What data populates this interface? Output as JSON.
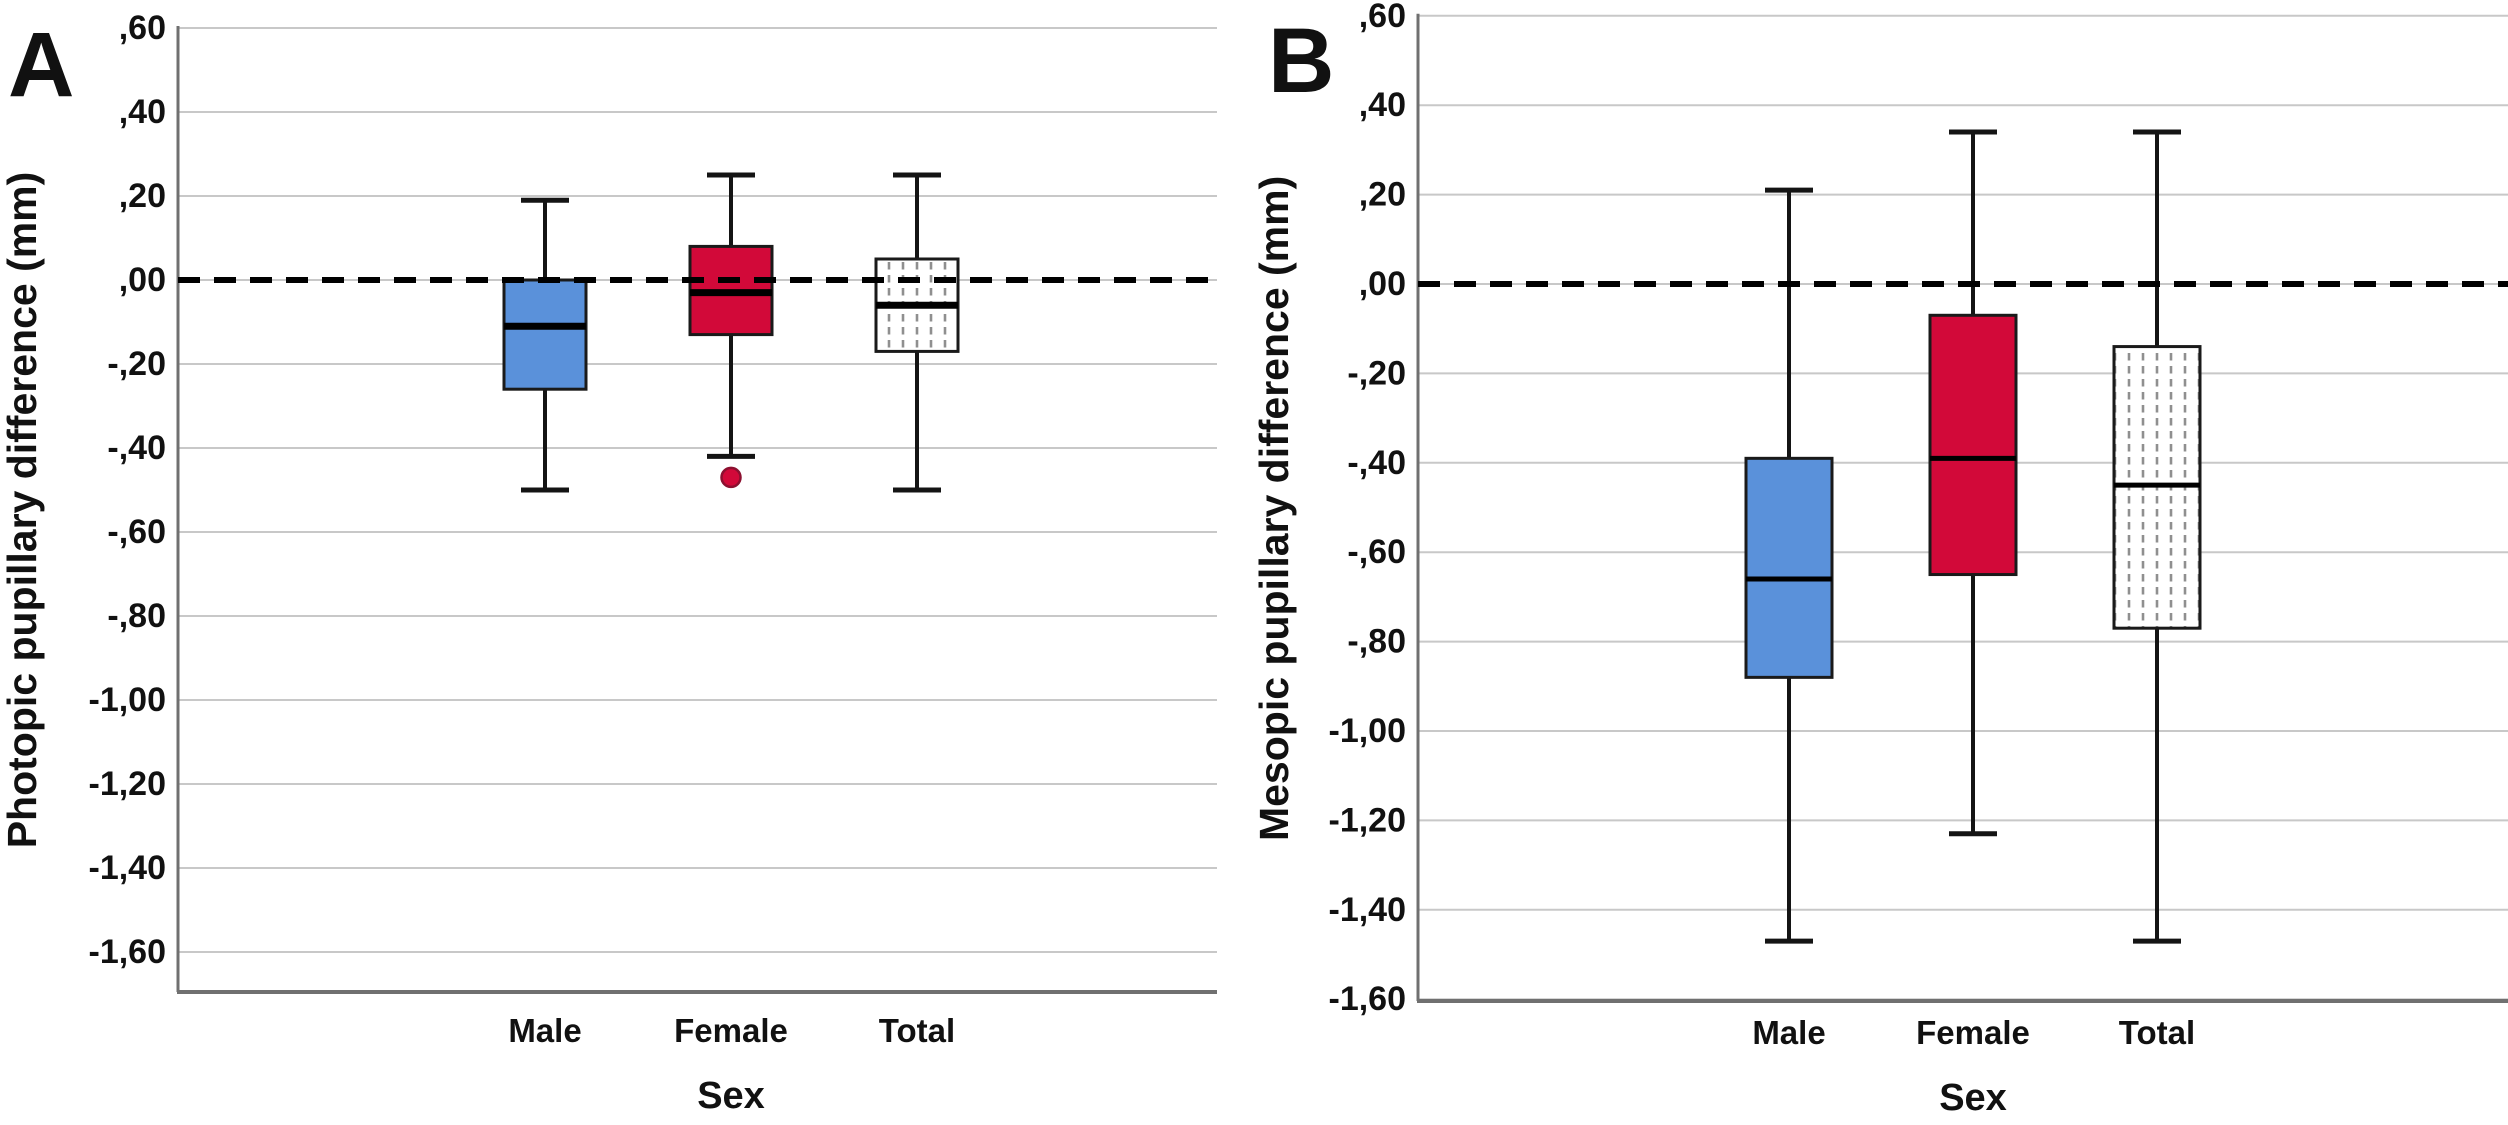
{
  "figure": {
    "background": "#ffffff",
    "colors": {
      "male_box": "#5A91DA",
      "female_box": "#D20939",
      "total_box_bg": "#ffffff",
      "total_pattern": "#8f8f8f",
      "box_stroke": "#1a1a1a",
      "median": "#000000",
      "whisker": "#141414",
      "grid": "#c8c8c8",
      "axis": "#707070",
      "zero_line": "#000000",
      "outlier_fill": "#D20939",
      "outlier_stroke": "#8c1030",
      "text": "#111111"
    }
  },
  "chart_data": [
    {
      "type": "box",
      "panel_label": "A",
      "ylabel": "Photopic pupillary difference (mm)",
      "xlabel": "Sex",
      "categories": [
        "Male",
        "Female",
        "Total"
      ],
      "y_ticks": [
        ",60",
        ",40",
        ",20",
        ",00",
        "-,20",
        "-,40",
        "-,60",
        "-,80",
        "-1,00",
        "-1,20",
        "-1,40",
        "-1,60"
      ],
      "y_tick_values": [
        0.6,
        0.4,
        0.2,
        0.0,
        -0.2,
        -0.4,
        -0.6,
        -0.8,
        -1.0,
        -1.2,
        -1.4,
        -1.6
      ],
      "ylim": [
        -1.7,
        0.6
      ],
      "grid": true,
      "reference_line": 0.0,
      "series": [
        {
          "name": "Male",
          "style": "blue",
          "whisker_low": -0.5,
          "q1": -0.26,
          "median": -0.11,
          "q3": 0.0,
          "whisker_high": 0.19,
          "outliers": []
        },
        {
          "name": "Female",
          "style": "red",
          "whisker_low": -0.42,
          "q1": -0.13,
          "median": -0.03,
          "q3": 0.08,
          "whisker_high": 0.25,
          "outliers": [
            -0.47
          ]
        },
        {
          "name": "Total",
          "style": "dotted",
          "whisker_low": -0.5,
          "q1": -0.17,
          "median": -0.06,
          "q3": 0.05,
          "whisker_high": 0.25,
          "outliers": []
        }
      ]
    },
    {
      "type": "box",
      "panel_label": "B",
      "ylabel": "Mesopic pupillary difference (mm)",
      "xlabel": "Sex",
      "categories": [
        "Male",
        "Female",
        "Total"
      ],
      "y_ticks": [
        ",60",
        ",40",
        ",20",
        ",00",
        "-,20",
        "-,40",
        "-,60",
        "-,80",
        "-1,00",
        "-1,20",
        "-1,40",
        "-1,60"
      ],
      "y_tick_values": [
        0.6,
        0.4,
        0.2,
        0.0,
        -0.2,
        -0.4,
        -0.6,
        -0.8,
        -1.0,
        -1.2,
        -1.4,
        -1.6
      ],
      "ylim": [
        -1.7,
        0.6
      ],
      "grid": true,
      "reference_line": 0.0,
      "series": [
        {
          "name": "Male",
          "style": "blue",
          "whisker_low": -1.47,
          "q1": -0.88,
          "median": -0.66,
          "q3": -0.39,
          "whisker_high": 0.21,
          "outliers": []
        },
        {
          "name": "Female",
          "style": "red",
          "whisker_low": -1.23,
          "q1": -0.65,
          "median": -0.39,
          "q3": -0.07,
          "whisker_high": 0.34,
          "outliers": []
        },
        {
          "name": "Total",
          "style": "dotted",
          "whisker_low": -1.47,
          "q1": -0.77,
          "median": -0.45,
          "q3": -0.14,
          "whisker_high": 0.34,
          "outliers": []
        }
      ]
    }
  ]
}
